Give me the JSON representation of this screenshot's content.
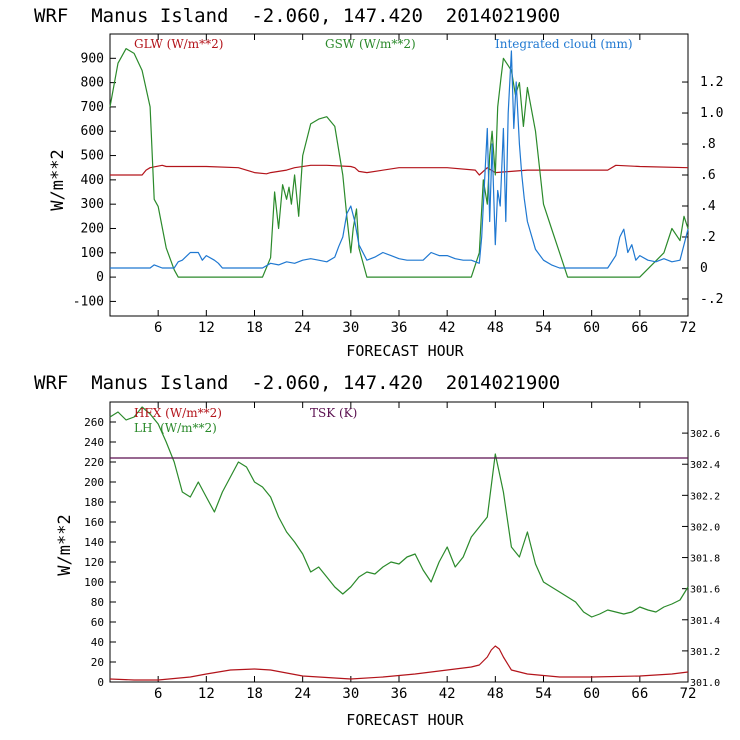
{
  "colors": {
    "red": "#b3141b",
    "green": "#2b8a2b",
    "blue": "#1f78d1",
    "purple": "#5a0f4f",
    "black": "#000000"
  },
  "chart_data": [
    {
      "type": "line",
      "title": "WRF  Manus Island  -2.060, 147.420  2014021900",
      "xlabel": "FORECAST HOUR",
      "ylabel": "W/m**2",
      "xlim": [
        0,
        72
      ],
      "ylim": [
        -160,
        1000
      ],
      "y2lim": [
        -0.31,
        1.51
      ],
      "xticks": [
        "6",
        "12",
        "18",
        "24",
        "30",
        "36",
        "42",
        "48",
        "54",
        "60",
        "66",
        "72"
      ],
      "yticks": [
        "-100",
        "0",
        "100",
        "200",
        "300",
        "400",
        "500",
        "600",
        "700",
        "800",
        "900"
      ],
      "y2ticks": [
        "-.2",
        "0",
        ".2",
        ".4",
        ".6",
        ".8",
        "1.0",
        "1.2"
      ],
      "legend": [
        "GLW (W/m**2)",
        "GSW (W/m**2)",
        "Integrated cloud (mm)"
      ],
      "series": [
        {
          "name": "GLW (W/m**2)",
          "axis": "left",
          "x": [
            0,
            4,
            4.5,
            5,
            6.5,
            7,
            12,
            16,
            18,
            19.5,
            20,
            21,
            22,
            23,
            25,
            27,
            30,
            30.5,
            31,
            32,
            36,
            40,
            42,
            45.5,
            46,
            47,
            48,
            52,
            54,
            58,
            60,
            62,
            63,
            66,
            72
          ],
          "y": [
            420,
            420,
            440,
            450,
            460,
            455,
            455,
            450,
            430,
            425,
            430,
            435,
            440,
            450,
            460,
            460,
            455,
            450,
            435,
            430,
            450,
            450,
            450,
            440,
            420,
            450,
            430,
            440,
            440,
            440,
            440,
            440,
            460,
            455,
            450
          ]
        },
        {
          "name": "GSW (W/m**2)",
          "axis": "left",
          "x": [
            0,
            1,
            2,
            3,
            4,
            5,
            5.5,
            6,
            7,
            8,
            8.5,
            9,
            19,
            20,
            20.5,
            21,
            21.5,
            22,
            22.3,
            22.6,
            23,
            23.5,
            24,
            25,
            26,
            27,
            28,
            29,
            29.5,
            30,
            30.3,
            30.7,
            31,
            32,
            34,
            35,
            45,
            46,
            46.5,
            47,
            47.3,
            47.6,
            48,
            48.3,
            48.7,
            49,
            50,
            50.5,
            51,
            51.5,
            52,
            53,
            54,
            55,
            56,
            57,
            60,
            62,
            66,
            69,
            70,
            71,
            71.5,
            72
          ],
          "y": [
            700,
            880,
            940,
            920,
            850,
            700,
            320,
            290,
            120,
            30,
            0,
            0,
            0,
            80,
            350,
            200,
            380,
            320,
            370,
            300,
            420,
            250,
            500,
            630,
            650,
            660,
            620,
            420,
            250,
            100,
            200,
            280,
            120,
            0,
            0,
            0,
            0,
            100,
            400,
            300,
            500,
            600,
            420,
            700,
            820,
            900,
            850,
            750,
            800,
            620,
            780,
            600,
            300,
            200,
            100,
            0,
            0,
            0,
            0,
            100,
            200,
            150,
            250,
            200
          ]
        },
        {
          "name": "Integrated cloud (mm)",
          "axis": "right",
          "x": [
            0,
            5,
            5.5,
            6,
            6.5,
            7,
            8,
            8.5,
            9,
            10,
            11,
            11.5,
            12,
            13,
            13.5,
            14,
            19,
            20,
            21,
            22,
            23,
            24,
            25,
            26,
            27,
            28,
            28.5,
            29,
            29.5,
            30,
            30.5,
            31,
            32,
            33,
            34,
            35,
            36,
            37,
            38,
            39,
            40,
            41,
            42,
            43,
            44,
            45,
            46,
            46.3,
            46.6,
            47,
            47.3,
            47.6,
            48,
            48.3,
            48.6,
            49,
            49.3,
            49.6,
            50,
            50.3,
            50.6,
            51,
            51.3,
            51.6,
            52,
            53,
            54,
            55,
            56,
            58,
            60,
            62,
            63,
            63.5,
            64,
            64.5,
            65,
            65.5,
            66,
            67,
            68,
            69,
            70,
            71,
            71.5,
            72
          ],
          "y": [
            0,
            0,
            0.02,
            0.01,
            0,
            0,
            0,
            0.04,
            0.05,
            0.1,
            0.1,
            0.05,
            0.08,
            0.05,
            0.03,
            0,
            0,
            0.03,
            0.02,
            0.04,
            0.03,
            0.05,
            0.06,
            0.05,
            0.04,
            0.07,
            0.14,
            0.2,
            0.35,
            0.4,
            0.3,
            0.15,
            0.05,
            0.07,
            0.1,
            0.08,
            0.06,
            0.05,
            0.05,
            0.05,
            0.1,
            0.08,
            0.08,
            0.06,
            0.05,
            0.05,
            0.03,
            0.2,
            0.5,
            0.9,
            0.3,
            0.8,
            0.15,
            0.5,
            0.4,
            0.9,
            0.3,
            1.0,
            1.4,
            0.9,
            1.2,
            0.8,
            0.6,
            0.45,
            0.3,
            0.12,
            0.05,
            0.02,
            0,
            0,
            0,
            0,
            0.08,
            0.2,
            0.25,
            0.1,
            0.15,
            0.05,
            0.08,
            0.05,
            0.04,
            0.06,
            0.04,
            0.05,
            0.15,
            0.25
          ]
        }
      ]
    },
    {
      "type": "line",
      "title": "WRF  Manus Island  -2.060, 147.420  2014021900",
      "xlabel": "FORECAST HOUR",
      "ylabel": "W/m**2",
      "xlim": [
        0,
        72
      ],
      "ylim": [
        0,
        280
      ],
      "y2lim": [
        301.0,
        302.8
      ],
      "xticks": [
        "6",
        "12",
        "18",
        "24",
        "30",
        "36",
        "42",
        "48",
        "54",
        "60",
        "66",
        "72"
      ],
      "yticks": [
        "0",
        "20",
        "40",
        "60",
        "80",
        "100",
        "120",
        "140",
        "160",
        "180",
        "200",
        "220",
        "240",
        "260"
      ],
      "y2ticks": [
        "301.0",
        "301.2",
        "301.4",
        "301.6",
        "301.8",
        "302.0",
        "302.2",
        "302.4",
        "302.6"
      ],
      "legend": [
        "HFX (W/m**2)",
        "LH  (W/m**2)",
        "TSK (K)"
      ],
      "series": [
        {
          "name": "HFX (W/m**2)",
          "axis": "left",
          "x": [
            0,
            3,
            6,
            10,
            12,
            15,
            18,
            20,
            24,
            28,
            30,
            34,
            38,
            42,
            45,
            46,
            47,
            47.5,
            48,
            48.5,
            49,
            50,
            52,
            56,
            60,
            66,
            70,
            72
          ],
          "y": [
            3,
            2,
            2,
            5,
            8,
            12,
            13,
            12,
            6,
            4,
            3,
            5,
            8,
            12,
            15,
            17,
            25,
            32,
            36,
            33,
            25,
            12,
            8,
            5,
            5,
            6,
            8,
            10
          ]
        },
        {
          "name": "LH  (W/m**2)",
          "axis": "left",
          "x": [
            0,
            1,
            2,
            3,
            4,
            5,
            6,
            7,
            8,
            9,
            10,
            11,
            12,
            13,
            14,
            15,
            16,
            17,
            18,
            19,
            20,
            21,
            22,
            23,
            24,
            25,
            26,
            27,
            28,
            29,
            30,
            31,
            32,
            33,
            34,
            35,
            36,
            37,
            38,
            39,
            40,
            41,
            42,
            43,
            44,
            45,
            46,
            47,
            48,
            49,
            50,
            51,
            52,
            53,
            54,
            55,
            56,
            57,
            58,
            59,
            60,
            61,
            62,
            63,
            64,
            65,
            66,
            67,
            68,
            69,
            70,
            71,
            72
          ],
          "y": [
            265,
            270,
            262,
            265,
            275,
            268,
            258,
            240,
            220,
            190,
            185,
            200,
            185,
            170,
            190,
            205,
            220,
            215,
            200,
            195,
            185,
            165,
            150,
            140,
            128,
            110,
            115,
            105,
            95,
            88,
            95,
            105,
            110,
            108,
            115,
            120,
            118,
            125,
            128,
            112,
            100,
            120,
            135,
            115,
            125,
            145,
            155,
            165,
            228,
            190,
            135,
            125,
            150,
            118,
            100,
            95,
            90,
            85,
            80,
            70,
            65,
            68,
            72,
            70,
            68,
            70,
            75,
            72,
            70,
            75,
            78,
            82,
            95
          ]
        },
        {
          "name": "TSK (K)",
          "axis": "right",
          "x": [
            0,
            72
          ],
          "y": [
            302.44,
            302.44
          ]
        }
      ]
    }
  ]
}
